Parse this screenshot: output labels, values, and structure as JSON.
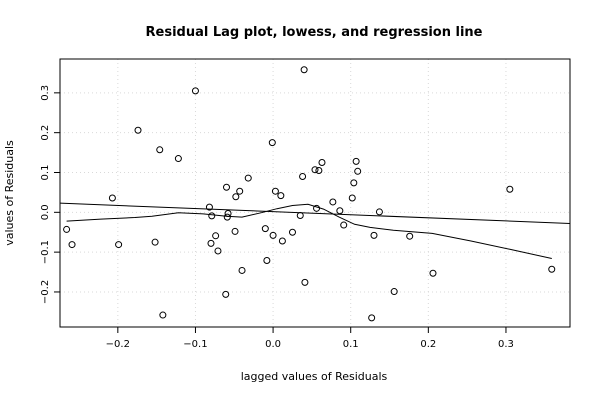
{
  "chart_data": {
    "type": "scatter",
    "title": "Residual Lag plot, lowess, and regression line",
    "xlabel": "lagged values of Residuals",
    "ylabel": "values of Residuals",
    "xlim": [
      -0.2745,
      0.3825
    ],
    "ylim": [
      -0.288,
      0.385
    ],
    "xticks": [
      -0.2,
      -0.1,
      0.0,
      0.1,
      0.2,
      0.3
    ],
    "xtick_labels": [
      "−0.2",
      "−0.1",
      "0.0",
      "0.1",
      "0.2",
      "0.3"
    ],
    "yticks": [
      -0.2,
      -0.1,
      0.0,
      0.1,
      0.2,
      0.3
    ],
    "ytick_labels": [
      "−0.2",
      "−0.1",
      "0.0",
      "0.1",
      "0.2",
      "0.3"
    ],
    "grid": true,
    "points": [
      {
        "x": -0.266,
        "y": -0.043
      },
      {
        "x": -0.259,
        "y": -0.081
      },
      {
        "x": -0.207,
        "y": 0.036
      },
      {
        "x": -0.199,
        "y": -0.081
      },
      {
        "x": -0.174,
        "y": 0.206
      },
      {
        "x": -0.152,
        "y": -0.075
      },
      {
        "x": -0.146,
        "y": 0.157
      },
      {
        "x": -0.142,
        "y": -0.258
      },
      {
        "x": -0.122,
        "y": 0.135
      },
      {
        "x": -0.1,
        "y": 0.305
      },
      {
        "x": -0.082,
        "y": 0.013
      },
      {
        "x": -0.08,
        "y": -0.078
      },
      {
        "x": -0.079,
        "y": -0.009
      },
      {
        "x": -0.074,
        "y": -0.059
      },
      {
        "x": -0.071,
        "y": -0.097
      },
      {
        "x": -0.061,
        "y": -0.206
      },
      {
        "x": -0.06,
        "y": 0.063
      },
      {
        "x": -0.059,
        "y": -0.012
      },
      {
        "x": -0.058,
        "y": -0.003
      },
      {
        "x": -0.049,
        "y": -0.048
      },
      {
        "x": -0.048,
        "y": 0.039
      },
      {
        "x": -0.043,
        "y": 0.053
      },
      {
        "x": -0.04,
        "y": -0.146
      },
      {
        "x": -0.032,
        "y": 0.086
      },
      {
        "x": -0.01,
        "y": -0.041
      },
      {
        "x": -0.008,
        "y": -0.121
      },
      {
        "x": -0.001,
        "y": 0.175
      },
      {
        "x": 0.0,
        "y": -0.058
      },
      {
        "x": 0.003,
        "y": 0.053
      },
      {
        "x": 0.01,
        "y": 0.042
      },
      {
        "x": 0.012,
        "y": -0.072
      },
      {
        "x": 0.025,
        "y": -0.05
      },
      {
        "x": 0.035,
        "y": -0.008
      },
      {
        "x": 0.038,
        "y": 0.09
      },
      {
        "x": 0.04,
        "y": 0.358
      },
      {
        "x": 0.041,
        "y": -0.176
      },
      {
        "x": 0.054,
        "y": 0.107
      },
      {
        "x": 0.056,
        "y": 0.01
      },
      {
        "x": 0.059,
        "y": 0.105
      },
      {
        "x": 0.063,
        "y": 0.125
      },
      {
        "x": 0.077,
        "y": 0.026
      },
      {
        "x": 0.086,
        "y": 0.004
      },
      {
        "x": 0.091,
        "y": -0.032
      },
      {
        "x": 0.102,
        "y": 0.036
      },
      {
        "x": 0.104,
        "y": 0.074
      },
      {
        "x": 0.107,
        "y": 0.128
      },
      {
        "x": 0.109,
        "y": 0.103
      },
      {
        "x": 0.127,
        "y": -0.265
      },
      {
        "x": 0.13,
        "y": -0.058
      },
      {
        "x": 0.137,
        "y": 0.001
      },
      {
        "x": 0.156,
        "y": -0.199
      },
      {
        "x": 0.176,
        "y": -0.06
      },
      {
        "x": 0.206,
        "y": -0.153
      },
      {
        "x": 0.305,
        "y": 0.058
      },
      {
        "x": 0.359,
        "y": -0.143
      }
    ],
    "regression_line": {
      "x": [
        -0.2745,
        0.3825
      ],
      "y": [
        0.023,
        -0.028
      ]
    },
    "lowess": {
      "x": [
        -0.266,
        -0.222,
        -0.178,
        -0.156,
        -0.122,
        -0.09,
        -0.06,
        -0.04,
        -0.015,
        0.005,
        0.025,
        0.045,
        0.065,
        0.085,
        0.105,
        0.125,
        0.155,
        0.205,
        0.255,
        0.305,
        0.359
      ],
      "y": [
        -0.022,
        -0.017,
        -0.013,
        -0.01,
        -0.001,
        -0.004,
        -0.01,
        -0.012,
        -0.001,
        0.009,
        0.017,
        0.02,
        0.008,
        -0.012,
        -0.03,
        -0.038,
        -0.045,
        -0.053,
        -0.072,
        -0.093,
        -0.116
      ]
    }
  }
}
